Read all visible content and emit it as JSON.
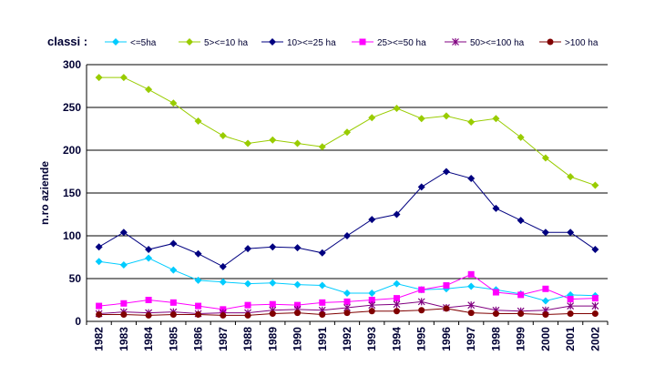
{
  "legend": {
    "title": "classi :"
  },
  "chart_data": {
    "type": "line",
    "title": "",
    "xlabel": "",
    "ylabel": "n.ro aziende",
    "ylim": [
      0,
      300
    ],
    "yticks": [
      0,
      50,
      100,
      150,
      200,
      250,
      300
    ],
    "grid": true,
    "legend_position": "top",
    "categories": [
      "1982",
      "1983",
      "1984",
      "1985",
      "1986",
      "1987",
      "1988",
      "1989",
      "1990",
      "1991",
      "1992",
      "1993",
      "1994",
      "1995",
      "1996",
      "1997",
      "1998",
      "1999",
      "2000",
      "2001",
      "2002"
    ],
    "series": [
      {
        "name": "<=5ha",
        "color": "#00CCFF",
        "marker": "diamond",
        "values": [
          70,
          66,
          74,
          60,
          48,
          46,
          44,
          45,
          43,
          42,
          33,
          33,
          44,
          37,
          38,
          41,
          37,
          32,
          24,
          31,
          30
        ]
      },
      {
        "name": "5><=10 ha",
        "color": "#99CC00",
        "marker": "diamond",
        "values": [
          285,
          285,
          271,
          255,
          234,
          217,
          208,
          212,
          208,
          204,
          221,
          238,
          249,
          237,
          240,
          233,
          237,
          215,
          191,
          169,
          159
        ]
      },
      {
        "name": "10><=25 ha",
        "color": "#000080",
        "marker": "diamond",
        "values": [
          87,
          104,
          84,
          91,
          79,
          64,
          85,
          87,
          86,
          80,
          100,
          119,
          125,
          157,
          175,
          167,
          132,
          118,
          104,
          104,
          84
        ]
      },
      {
        "name": "25><=50 ha",
        "color": "#FF00FF",
        "marker": "square",
        "values": [
          18,
          21,
          25,
          22,
          18,
          14,
          19,
          20,
          19,
          22,
          23,
          25,
          27,
          37,
          42,
          55,
          34,
          31,
          38,
          26,
          27
        ]
      },
      {
        "name": "50><=100 ha",
        "color": "#800080",
        "marker": "star",
        "values": [
          9,
          11,
          10,
          11,
          9,
          10,
          10,
          13,
          14,
          13,
          16,
          19,
          20,
          23,
          16,
          19,
          13,
          12,
          13,
          18,
          18
        ]
      },
      {
        "name": ">100 ha",
        "color": "#800000",
        "marker": "circle",
        "values": [
          8,
          8,
          7,
          8,
          8,
          7,
          7,
          9,
          10,
          8,
          10,
          12,
          12,
          13,
          15,
          10,
          9,
          9,
          8,
          9,
          9
        ]
      }
    ]
  }
}
